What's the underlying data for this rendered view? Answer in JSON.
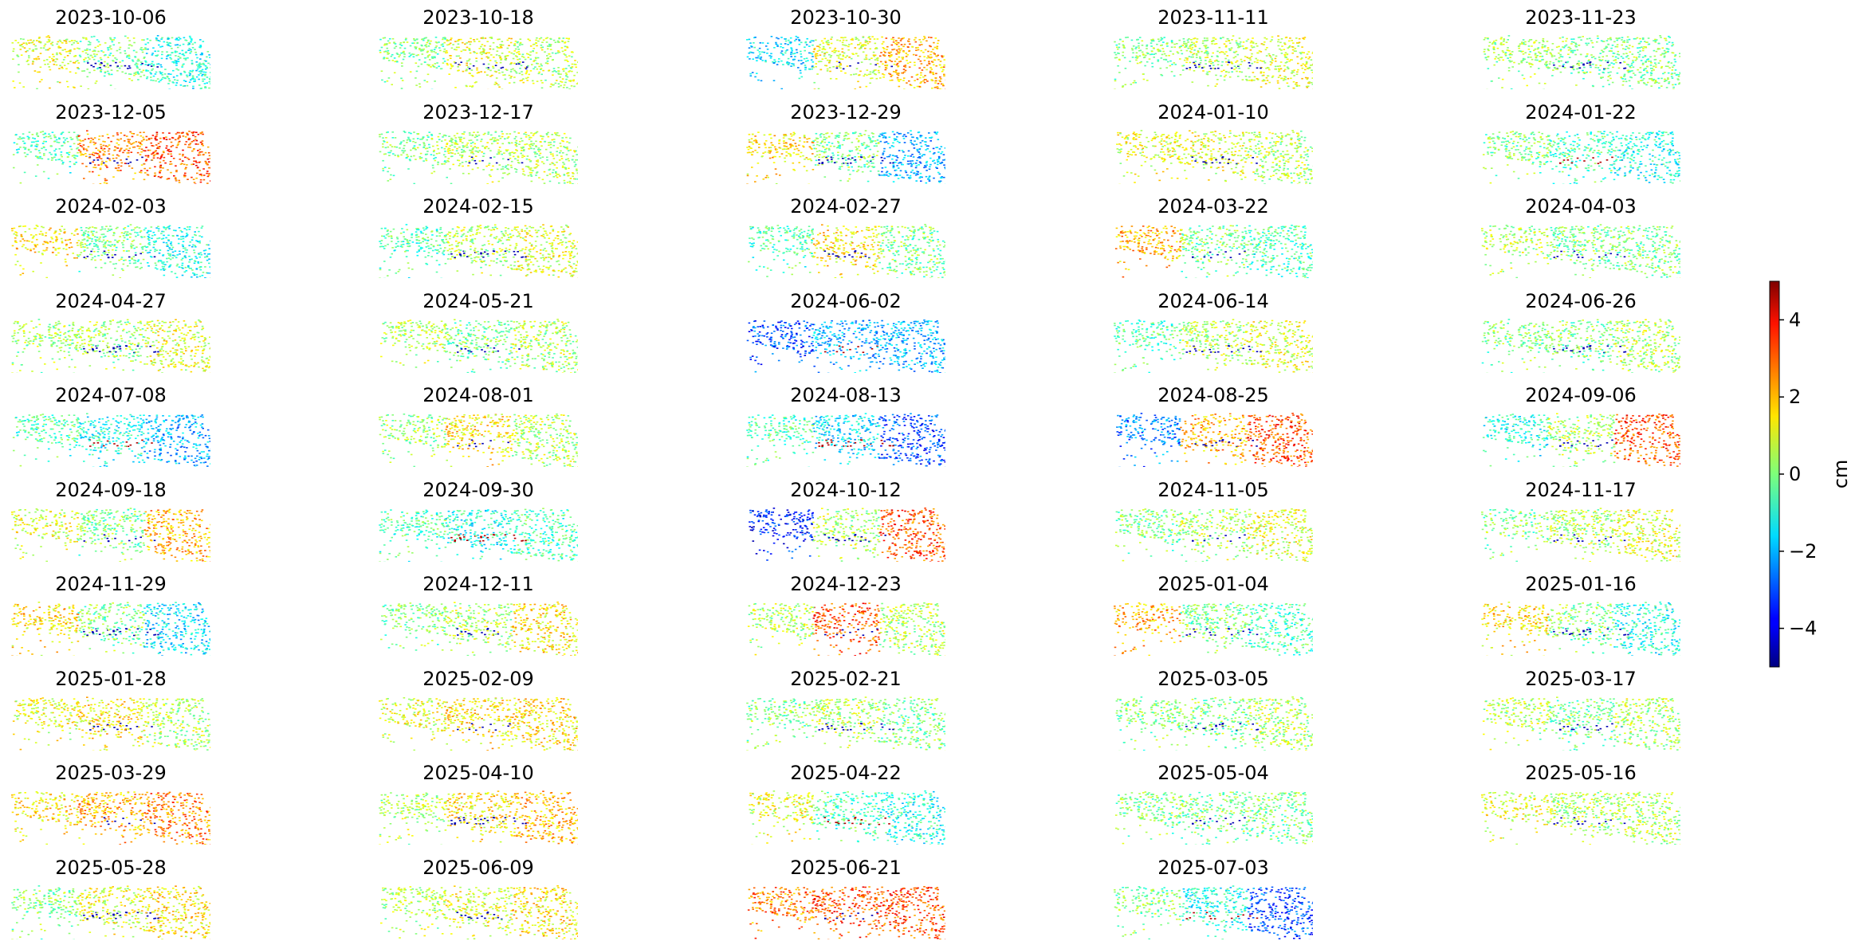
{
  "chart_data": {
    "type": "heatmap",
    "subplot_titles": [
      "2023-10-06",
      "2023-10-18",
      "2023-10-30",
      "2023-11-11",
      "2023-11-23",
      "2023-12-05",
      "2023-12-17",
      "2023-12-29",
      "2024-01-10",
      "2024-01-22",
      "2024-02-03",
      "2024-02-15",
      "2024-02-27",
      "2024-03-22",
      "2024-04-03",
      "2024-04-27",
      "2024-05-21",
      "2024-06-02",
      "2024-06-14",
      "2024-06-26",
      "2024-07-08",
      "2024-08-01",
      "2024-08-13",
      "2024-08-25",
      "2024-09-06",
      "2024-09-18",
      "2024-09-30",
      "2024-10-12",
      "2024-11-05",
      "2024-11-17",
      "2024-11-29",
      "2024-12-11",
      "2024-12-23",
      "2025-01-04",
      "2025-01-16",
      "2025-01-28",
      "2025-02-09",
      "2025-02-21",
      "2025-03-05",
      "2025-03-17",
      "2025-03-29",
      "2025-04-10",
      "2025-04-22",
      "2025-05-04",
      "2025-05-16",
      "2025-05-28",
      "2025-06-09",
      "2025-06-21",
      "2025-07-03"
    ],
    "panel_tone": [
      [
        1,
        0,
        -1
      ],
      [
        0,
        1,
        0.5
      ],
      [
        -1.5,
        1,
        2
      ],
      [
        0,
        0.5,
        1
      ],
      [
        0.3,
        0,
        0
      ],
      [
        -0.5,
        2.5,
        3
      ],
      [
        0,
        0.5,
        0.5
      ],
      [
        1.5,
        0,
        -2
      ],
      [
        1,
        1,
        0.5
      ],
      [
        0,
        -0.5,
        -1
      ],
      [
        1.5,
        0,
        -1
      ],
      [
        -0.5,
        0.5,
        1
      ],
      [
        -0.5,
        1.5,
        0
      ],
      [
        2,
        0,
        -0.5
      ],
      [
        0.5,
        0,
        0
      ],
      [
        0.3,
        0.3,
        1
      ],
      [
        0.5,
        0,
        0.5
      ],
      [
        -3,
        -2,
        -2
      ],
      [
        -0.5,
        0.5,
        1
      ],
      [
        0,
        0,
        0.5
      ],
      [
        -0.5,
        -1,
        -2
      ],
      [
        0.3,
        1.5,
        0.5
      ],
      [
        -0.5,
        -1.5,
        -3
      ],
      [
        -2.5,
        2,
        3
      ],
      [
        -1,
        0.5,
        3
      ],
      [
        1,
        0,
        2
      ],
      [
        -0.5,
        -1,
        -0.5
      ],
      [
        -3.5,
        0.5,
        3
      ],
      [
        0,
        0.5,
        1
      ],
      [
        0,
        0.5,
        1
      ],
      [
        1.5,
        0,
        -1.5
      ],
      [
        0,
        0.5,
        1.5
      ],
      [
        0.5,
        3,
        0.5
      ],
      [
        2,
        0,
        -0.5
      ],
      [
        1.5,
        0,
        -1
      ],
      [
        1,
        1.5,
        0.5
      ],
      [
        1,
        1.5,
        1.5
      ],
      [
        0,
        0.5,
        0
      ],
      [
        0,
        0,
        0.5
      ],
      [
        0.5,
        0,
        0.5
      ],
      [
        1.5,
        2,
        2.5
      ],
      [
        0.5,
        1.5,
        2
      ],
      [
        1,
        -0.5,
        -1
      ],
      [
        0,
        0,
        0
      ],
      [
        1,
        0.5,
        0.5
      ],
      [
        0,
        1,
        1.5
      ],
      [
        0.5,
        1,
        1.5
      ],
      [
        2.5,
        3,
        3
      ],
      [
        0,
        -1,
        -3
      ]
    ],
    "colorbar": {
      "label": "cm",
      "colormap": "jet",
      "vmin": -5,
      "vmax": 5,
      "ticks": [
        -4,
        -2,
        0,
        2,
        4
      ],
      "tick_labels": [
        "−4",
        "−2",
        "0",
        "2",
        "4"
      ]
    },
    "grid": {
      "rows": 10,
      "cols": 5
    }
  }
}
